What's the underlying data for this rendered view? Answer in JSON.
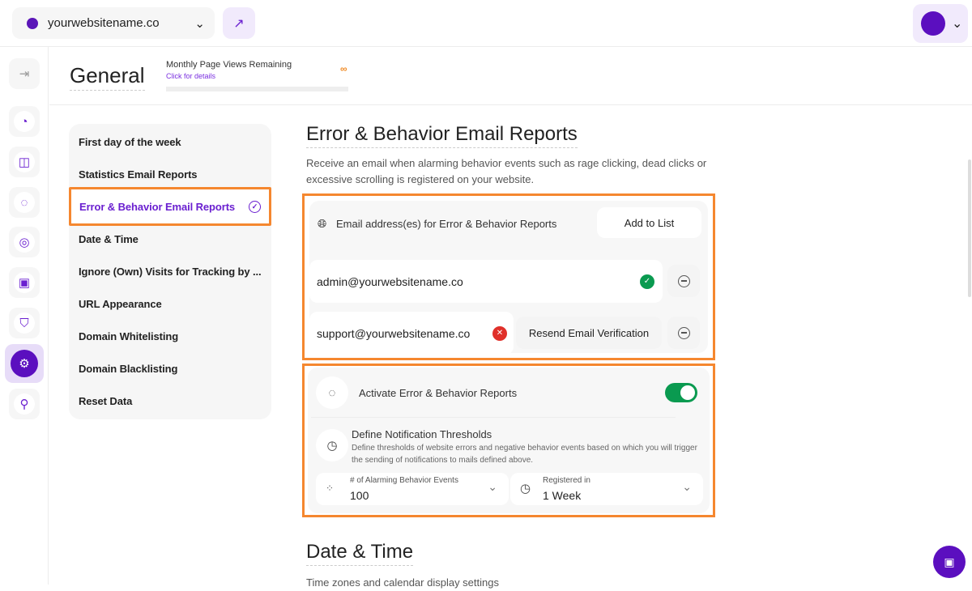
{
  "topbar": {
    "site": "yourwebsitename.co"
  },
  "header": {
    "title": "General",
    "pageviews_label": "Monthly Page Views Remaining",
    "pageviews_link": "Click for details",
    "pageviews_value": "∞"
  },
  "menu": {
    "items": [
      {
        "label": "First day of the week"
      },
      {
        "label": "Statistics Email Reports"
      },
      {
        "label": "Error & Behavior Email Reports"
      },
      {
        "label": "Date & Time"
      },
      {
        "label": "Ignore (Own) Visits for Tracking by ..."
      },
      {
        "label": "URL Appearance"
      },
      {
        "label": "Domain Whitelisting"
      },
      {
        "label": "Domain Blacklisting"
      },
      {
        "label": "Reset Data"
      }
    ],
    "selected_index": 2
  },
  "section": {
    "title": "Error & Behavior Email Reports",
    "description": "Receive an email when alarming behavior events such as rage clicking, dead clicks or excessive scrolling is registered on your website.",
    "emails_label": "Email address(es) for Error & Behavior Reports",
    "add_label": "Add to List",
    "emails": [
      {
        "address": "admin@yourwebsitename.co",
        "status": "verified"
      },
      {
        "address": "support@yourwebsitename.co",
        "status": "unverified",
        "action": "Resend Email Verification"
      }
    ],
    "activate_label": "Activate Error & Behavior Reports",
    "activate_on": true,
    "thresholds_title": "Define Notification Thresholds",
    "thresholds_desc": "Define thresholds of website errors and negative behavior events based on which you will trigger the sending of notifications to mails defined above.",
    "events_label": "# of Alarming Behavior Events",
    "events_value": "100",
    "registered_label": "Registered in",
    "registered_value": "1 Week"
  },
  "next_section": {
    "title": "Date & Time",
    "description": "Time zones and calendar display settings"
  },
  "colors": {
    "accent": "#5b0fbf",
    "highlight": "#f5872f",
    "success": "#0a9a50",
    "error": "#e0302a"
  }
}
